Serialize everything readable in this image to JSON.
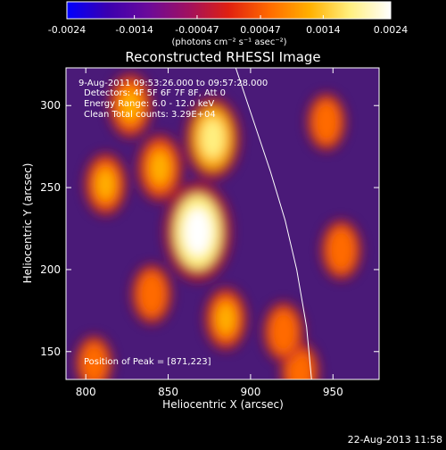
{
  "colorbar": {
    "tick_labels": [
      "-0.0024",
      "-0.0014",
      "-0.00047",
      "0.00047",
      "0.0014",
      "0.0024"
    ],
    "range": [
      -0.0024,
      0.0024
    ],
    "unit_label": "(photons cm⁻² s⁻¹ asec⁻²)",
    "colormap": [
      "#0000ff",
      "#3a00b0",
      "#6a0a9a",
      "#a01060",
      "#e02010",
      "#ff6a00",
      "#ffb000",
      "#fff080",
      "#ffffff"
    ]
  },
  "plot": {
    "title": "Reconstructed RHESSI Image",
    "info_lines": [
      "9-Aug-2011 09:53:26.000 to 09:57:28.000",
      "Detectors: 4F 5F 6F 7F 8F, Att 0",
      "Energy Range: 6.0 - 12.0 keV",
      "Clean     Total counts: 3.29E+04"
    ],
    "peak_label": "Position of Peak = [871,223]",
    "xlabel": "Heliocentric X (arcsec)",
    "ylabel": "Heliocentric Y (arcsec)"
  },
  "footer": {
    "date": "22-Aug-2013 11:58"
  },
  "chart_data": {
    "type": "heatmap",
    "title": "Reconstructed RHESSI Image",
    "xlabel": "Heliocentric X (arcsec)",
    "ylabel": "Heliocentric Y (arcsec)",
    "xlim": [
      788,
      978
    ],
    "ylim": [
      133,
      323
    ],
    "x_ticks": [
      800,
      850,
      900,
      950
    ],
    "y_ticks": [
      150,
      200,
      250,
      300
    ],
    "peak": {
      "x": 871,
      "y": 223
    },
    "sources": [
      {
        "x": 868,
        "y": 223,
        "value": 0.0024
      },
      {
        "x": 877,
        "y": 280,
        "value": 0.0017
      },
      {
        "x": 845,
        "y": 262,
        "value": 0.0011
      },
      {
        "x": 827,
        "y": 300,
        "value": 0.001
      },
      {
        "x": 812,
        "y": 252,
        "value": 0.0009
      },
      {
        "x": 885,
        "y": 170,
        "value": 0.0009
      },
      {
        "x": 840,
        "y": 185,
        "value": 0.0008
      },
      {
        "x": 920,
        "y": 162,
        "value": 0.0008
      },
      {
        "x": 955,
        "y": 212,
        "value": 0.0008
      },
      {
        "x": 946,
        "y": 290,
        "value": 0.0007
      },
      {
        "x": 805,
        "y": 143,
        "value": 0.0006
      },
      {
        "x": 930,
        "y": 138,
        "value": 0.0007
      }
    ],
    "limb": [
      [
        891,
        323
      ],
      [
        902,
        290
      ],
      [
        912,
        260
      ],
      [
        921,
        230
      ],
      [
        928,
        200
      ],
      [
        934,
        165
      ],
      [
        937,
        133
      ]
    ]
  }
}
